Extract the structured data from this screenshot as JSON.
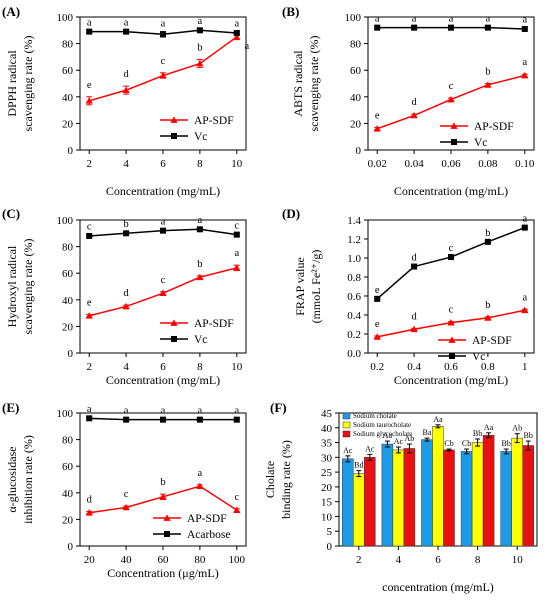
{
  "chart_data": [
    {
      "panel": "(A)",
      "type": "line",
      "xlabel": "Concentration (mg/mL)",
      "ylabel": [
        "DPPH radical",
        "scavenging rate (%)"
      ],
      "xlim": [
        1.5,
        10.5
      ],
      "ylim": [
        0,
        100
      ],
      "xticks": [
        2,
        4,
        6,
        8,
        10
      ],
      "yticks": [
        0,
        20,
        40,
        60,
        80,
        100
      ],
      "x": [
        2,
        4,
        6,
        8,
        10
      ],
      "series": [
        {
          "name": "AP-SDF",
          "marker": "triangle",
          "color": "#ff0000",
          "values": [
            37,
            45,
            56,
            65,
            85
          ],
          "errors": [
            3,
            3,
            2,
            3,
            2
          ],
          "labels": [
            "e",
            "d",
            "c",
            "b",
            "a"
          ]
        },
        {
          "name": "Vc",
          "marker": "square",
          "color": "#000000",
          "values": [
            89,
            89,
            87,
            90,
            88
          ],
          "errors": [
            1,
            1,
            2,
            1,
            1
          ],
          "labels": [
            "a",
            "a",
            "a",
            "a",
            "a"
          ]
        }
      ],
      "legend_position": "lower-right"
    },
    {
      "panel": "(B)",
      "type": "line",
      "xlabel": "Concentration (mg/mL)",
      "ylabel": [
        "ABTS radical",
        "scavenging rate (%)"
      ],
      "xlim": [
        0.015,
        0.105
      ],
      "ylim": [
        0,
        100
      ],
      "xticks": [
        0.02,
        0.04,
        0.06,
        0.08,
        0.1
      ],
      "xtick_labels": [
        "0.02",
        "0.04",
        "0.06",
        "0.08",
        "0.10"
      ],
      "yticks": [
        0,
        20,
        40,
        60,
        80,
        100
      ],
      "x": [
        0.02,
        0.04,
        0.06,
        0.08,
        0.1
      ],
      "series": [
        {
          "name": "AP-SDF",
          "marker": "triangle",
          "color": "#ff0000",
          "values": [
            16,
            26,
            38,
            49,
            56
          ],
          "errors": [
            1,
            1,
            1,
            1,
            1
          ],
          "labels": [
            "e",
            "d",
            "c",
            "b",
            "a"
          ]
        },
        {
          "name": "Vc",
          "marker": "square",
          "color": "#000000",
          "values": [
            92,
            92,
            92,
            92,
            91
          ],
          "errors": [
            1,
            1,
            1,
            1,
            1
          ],
          "labels": [
            "a",
            "a",
            "a",
            "a",
            "a"
          ]
        }
      ],
      "legend_position": "lower-right"
    },
    {
      "panel": "(C)",
      "type": "line",
      "xlabel": "Concentration (mg/mL)",
      "ylabel": [
        "Hydroxyl radical",
        "scavenging rate (%)"
      ],
      "xlim": [
        1.5,
        10.5
      ],
      "ylim": [
        0,
        100
      ],
      "xticks": [
        2,
        4,
        6,
        8,
        10
      ],
      "yticks": [
        0,
        20,
        40,
        60,
        80,
        100
      ],
      "x": [
        2,
        4,
        6,
        8,
        10
      ],
      "series": [
        {
          "name": "AP-SDF",
          "marker": "triangle",
          "color": "#ff0000",
          "values": [
            28,
            35,
            45,
            57,
            64
          ],
          "errors": [
            1,
            1,
            1,
            1,
            2
          ],
          "labels": [
            "e",
            "d",
            "c",
            "b",
            "a"
          ]
        },
        {
          "name": "Vc",
          "marker": "square",
          "color": "#000000",
          "values": [
            88,
            90,
            92,
            93,
            89
          ],
          "errors": [
            1,
            1,
            1,
            1,
            1
          ],
          "labels": [
            "c",
            "b",
            "a",
            "a",
            "c"
          ]
        }
      ],
      "legend_position": "lower-right"
    },
    {
      "panel": "(D)",
      "type": "line",
      "xlabel": "Concentration (mg/mL)",
      "ylabel": [
        "FRAP value",
        "(mmoL Fe²⁺/g)"
      ],
      "xlim": [
        0.15,
        1.05
      ],
      "ylim": [
        0,
        1.4
      ],
      "xticks": [
        0.2,
        0.4,
        0.6,
        0.8,
        1
      ],
      "xtick_labels": [
        "0.2",
        "0.4",
        "0.6",
        "0.8",
        "1"
      ],
      "yticks": [
        0,
        0.2,
        0.4,
        0.6,
        0.8,
        1.0,
        1.2,
        1.4
      ],
      "ytick_labels": [
        "0.0",
        "0.2",
        "0.4",
        "0.6",
        "0.8",
        "1.0",
        "1.2",
        "1.4"
      ],
      "x": [
        0.2,
        0.4,
        0.6,
        0.8,
        1
      ],
      "series": [
        {
          "name": "AP-SDF",
          "marker": "triangle",
          "color": "#ff0000",
          "values": [
            0.17,
            0.25,
            0.32,
            0.37,
            0.45
          ],
          "errors": [
            0.01,
            0.01,
            0.01,
            0.01,
            0.01
          ],
          "labels": [
            "e",
            "d",
            "c",
            "b",
            "a"
          ]
        },
        {
          "name": "Vc",
          "marker": "square",
          "color": "#000000",
          "values": [
            0.57,
            0.91,
            1.01,
            1.17,
            1.32
          ],
          "errors": [
            0.01,
            0.01,
            0.01,
            0.01,
            0.01
          ],
          "labels": [
            "e",
            "d",
            "c",
            "b",
            "a"
          ]
        }
      ],
      "legend_position": "lower-right"
    },
    {
      "panel": "(E)",
      "type": "line",
      "xlabel": "Concentration (μg/mL)",
      "ylabel": [
        "α-glucosidase",
        "inhibition rate (%)"
      ],
      "xlim": [
        15,
        105
      ],
      "ylim": [
        0,
        100
      ],
      "xticks": [
        20,
        40,
        60,
        80,
        100
      ],
      "yticks": [
        0,
        20,
        40,
        60,
        80,
        100
      ],
      "x": [
        20,
        40,
        60,
        80,
        100
      ],
      "series": [
        {
          "name": "AP-SDF",
          "marker": "triangle",
          "color": "#ff0000",
          "values": [
            25,
            29,
            37,
            45,
            27
          ],
          "errors": [
            1,
            1,
            2,
            1,
            1
          ],
          "labels": [
            "d",
            "c",
            "b",
            "a",
            "c"
          ]
        },
        {
          "name": "Acarbose",
          "marker": "square",
          "color": "#000000",
          "values": [
            96,
            95,
            95,
            95,
            95
          ],
          "errors": [
            1,
            1,
            1,
            1,
            1
          ],
          "labels": [
            "a",
            "a",
            "a",
            "a",
            "a"
          ]
        }
      ],
      "legend_position": "lower-right"
    },
    {
      "panel": "(F)",
      "type": "bar",
      "xlabel": "concentration (mg/mL)",
      "ylabel": [
        "Cholate",
        "binding rate (%)"
      ],
      "categories": [
        "2",
        "4",
        "6",
        "8",
        "10"
      ],
      "ylim": [
        0,
        45
      ],
      "yticks": [
        0,
        5,
        10,
        15,
        20,
        25,
        30,
        35,
        40,
        45
      ],
      "series": [
        {
          "name": "Sodium cholate",
          "color": "#1e9be6",
          "values": [
            29.5,
            34.5,
            36,
            32,
            32
          ],
          "errors": [
            1,
            1,
            0.5,
            0.8,
            0.8
          ],
          "labels": [
            "Ac",
            "Aa",
            "Ba",
            "Cb",
            "Bb"
          ]
        },
        {
          "name": "Sodium taurocholate",
          "color": "#ffff00",
          "values": [
            24.5,
            32.5,
            40.5,
            35,
            36.5
          ],
          "errors": [
            1,
            1,
            0.5,
            1.2,
            1.5
          ],
          "labels": [
            "Bd",
            "Ac",
            "Aa",
            "Bb",
            "Ab"
          ]
        },
        {
          "name": "Sodium glycocholate",
          "color": "#e81010",
          "values": [
            30,
            33,
            32.5,
            37.5,
            34
          ],
          "errors": [
            1,
            1.5,
            0.3,
            0.8,
            1.5
          ],
          "labels": [
            "Ac",
            "Ab",
            "Cb",
            "Aa",
            "Bb"
          ]
        }
      ],
      "legend_position": "top-left"
    }
  ]
}
